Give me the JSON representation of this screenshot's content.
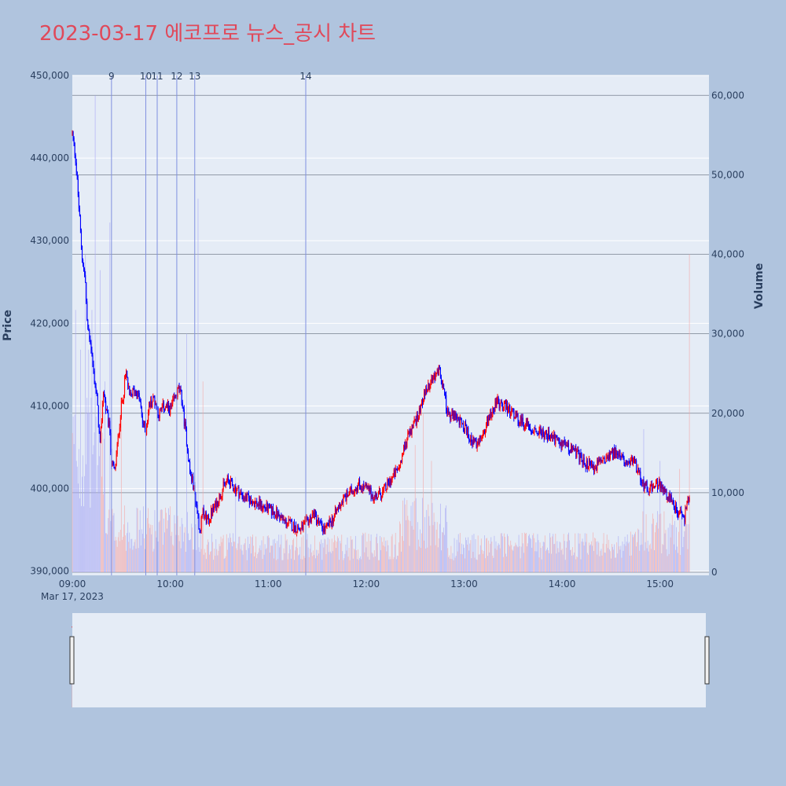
{
  "title": "2023-03-17 에코프로 뉴스_공시 차트",
  "chart_data": {
    "type": "candlestick",
    "title": "2023-03-17 에코프로 뉴스_공시 차트",
    "date_label": "Mar 17, 2023",
    "ylabel_left": "Price",
    "ylabel_right": "Volume",
    "price_ylim": [
      389500,
      450000
    ],
    "volume_ylim": [
      0,
      62500
    ],
    "price_ticks": [
      "390,000",
      "400,000",
      "410,000",
      "420,000",
      "430,000",
      "440,000",
      "450,000"
    ],
    "price_tick_values": [
      390000,
      400000,
      410000,
      420000,
      430000,
      440000,
      450000
    ],
    "volume_ticks": [
      "0",
      "10,000",
      "20,000",
      "30,000",
      "40,000",
      "50,000",
      "60,000"
    ],
    "volume_tick_values": [
      0,
      10000,
      20000,
      30000,
      40000,
      50000,
      60000
    ],
    "x_ticks": [
      "09:00",
      "10:00",
      "11:00",
      "12:00",
      "13:00",
      "14:00",
      "15:00"
    ],
    "x_tick_minutes": [
      0,
      60,
      120,
      180,
      240,
      300,
      360
    ],
    "x_range_minutes": [
      0,
      390
    ],
    "data_end_minute": 378,
    "colors": {
      "up": "#ff0000",
      "down": "#0000ff",
      "event_line": "#8090e0"
    },
    "events": [
      {
        "label": "9",
        "minute": 24
      },
      {
        "label": "10",
        "minute": 45
      },
      {
        "label": "11",
        "minute": 52
      },
      {
        "label": "12",
        "minute": 64
      },
      {
        "label": "13",
        "minute": 75
      },
      {
        "label": "14",
        "minute": 143
      }
    ],
    "price_keypoints": [
      [
        0,
        443000
      ],
      [
        2,
        440000
      ],
      [
        4,
        434000
      ],
      [
        6,
        428000
      ],
      [
        8,
        425000
      ],
      [
        9,
        420000
      ],
      [
        11,
        418000
      ],
      [
        13,
        414000
      ],
      [
        15,
        411000
      ],
      [
        17,
        405000
      ],
      [
        19,
        412000
      ],
      [
        21,
        409000
      ],
      [
        23,
        407000
      ],
      [
        24,
        403000
      ],
      [
        26,
        402000
      ],
      [
        28,
        406000
      ],
      [
        30,
        410000
      ],
      [
        33,
        414000
      ],
      [
        35,
        411000
      ],
      [
        38,
        412000
      ],
      [
        41,
        411000
      ],
      [
        43,
        408000
      ],
      [
        45,
        407000
      ],
      [
        47,
        410000
      ],
      [
        50,
        411000
      ],
      [
        53,
        409000
      ],
      [
        56,
        410000
      ],
      [
        60,
        409500
      ],
      [
        63,
        411000
      ],
      [
        65,
        412000
      ],
      [
        67,
        411000
      ],
      [
        68,
        409000
      ],
      [
        70,
        406000
      ],
      [
        72,
        402000
      ],
      [
        74,
        400500
      ],
      [
        76,
        398000
      ],
      [
        78,
        395000
      ],
      [
        80,
        397000
      ],
      [
        83,
        396000
      ],
      [
        85,
        397000
      ],
      [
        88,
        398000
      ],
      [
        92,
        400000
      ],
      [
        95,
        401000
      ],
      [
        100,
        400000
      ],
      [
        105,
        399000
      ],
      [
        110,
        398500
      ],
      [
        115,
        398000
      ],
      [
        120,
        397500
      ],
      [
        125,
        397000
      ],
      [
        130,
        396000
      ],
      [
        135,
        395500
      ],
      [
        140,
        395000
      ],
      [
        144,
        396000
      ],
      [
        148,
        397000
      ],
      [
        152,
        395500
      ],
      [
        155,
        395000
      ],
      [
        160,
        396500
      ],
      [
        165,
        398500
      ],
      [
        170,
        399500
      ],
      [
        175,
        400500
      ],
      [
        180,
        400000
      ],
      [
        185,
        399000
      ],
      [
        190,
        399500
      ],
      [
        195,
        401000
      ],
      [
        200,
        402500
      ],
      [
        205,
        406000
      ],
      [
        210,
        408000
      ],
      [
        215,
        411000
      ],
      [
        220,
        413000
      ],
      [
        225,
        414500
      ],
      [
        230,
        409000
      ],
      [
        235,
        408500
      ],
      [
        240,
        407500
      ],
      [
        244,
        406000
      ],
      [
        248,
        405000
      ],
      [
        252,
        407000
      ],
      [
        256,
        409000
      ],
      [
        260,
        410500
      ],
      [
        265,
        410000
      ],
      [
        270,
        409000
      ],
      [
        275,
        408000
      ],
      [
        280,
        407500
      ],
      [
        285,
        407000
      ],
      [
        290,
        406500
      ],
      [
        295,
        406000
      ],
      [
        300,
        405500
      ],
      [
        305,
        405000
      ],
      [
        310,
        404000
      ],
      [
        315,
        403000
      ],
      [
        320,
        402500
      ],
      [
        325,
        403500
      ],
      [
        330,
        404500
      ],
      [
        335,
        404000
      ],
      [
        340,
        403500
      ],
      [
        345,
        403000
      ],
      [
        350,
        400500
      ],
      [
        355,
        400000
      ],
      [
        360,
        400500
      ],
      [
        365,
        399000
      ],
      [
        370,
        397500
      ],
      [
        375,
        396500
      ],
      [
        378,
        399500
      ]
    ],
    "volume_hotspots": [
      [
        2,
        33000
      ],
      [
        5,
        28000
      ],
      [
        8,
        40000
      ],
      [
        10,
        28000
      ],
      [
        12,
        33000
      ],
      [
        14,
        60000
      ],
      [
        17,
        38000
      ],
      [
        20,
        24000
      ],
      [
        23,
        44000
      ],
      [
        30,
        22000
      ],
      [
        45,
        13000
      ],
      [
        70,
        30000
      ],
      [
        77,
        47000
      ],
      [
        80,
        24000
      ],
      [
        100,
        12000
      ],
      [
        210,
        16000
      ],
      [
        215,
        20000
      ],
      [
        220,
        14000
      ],
      [
        350,
        18000
      ],
      [
        360,
        14000
      ],
      [
        372,
        13000
      ],
      [
        378,
        40000
      ]
    ]
  }
}
